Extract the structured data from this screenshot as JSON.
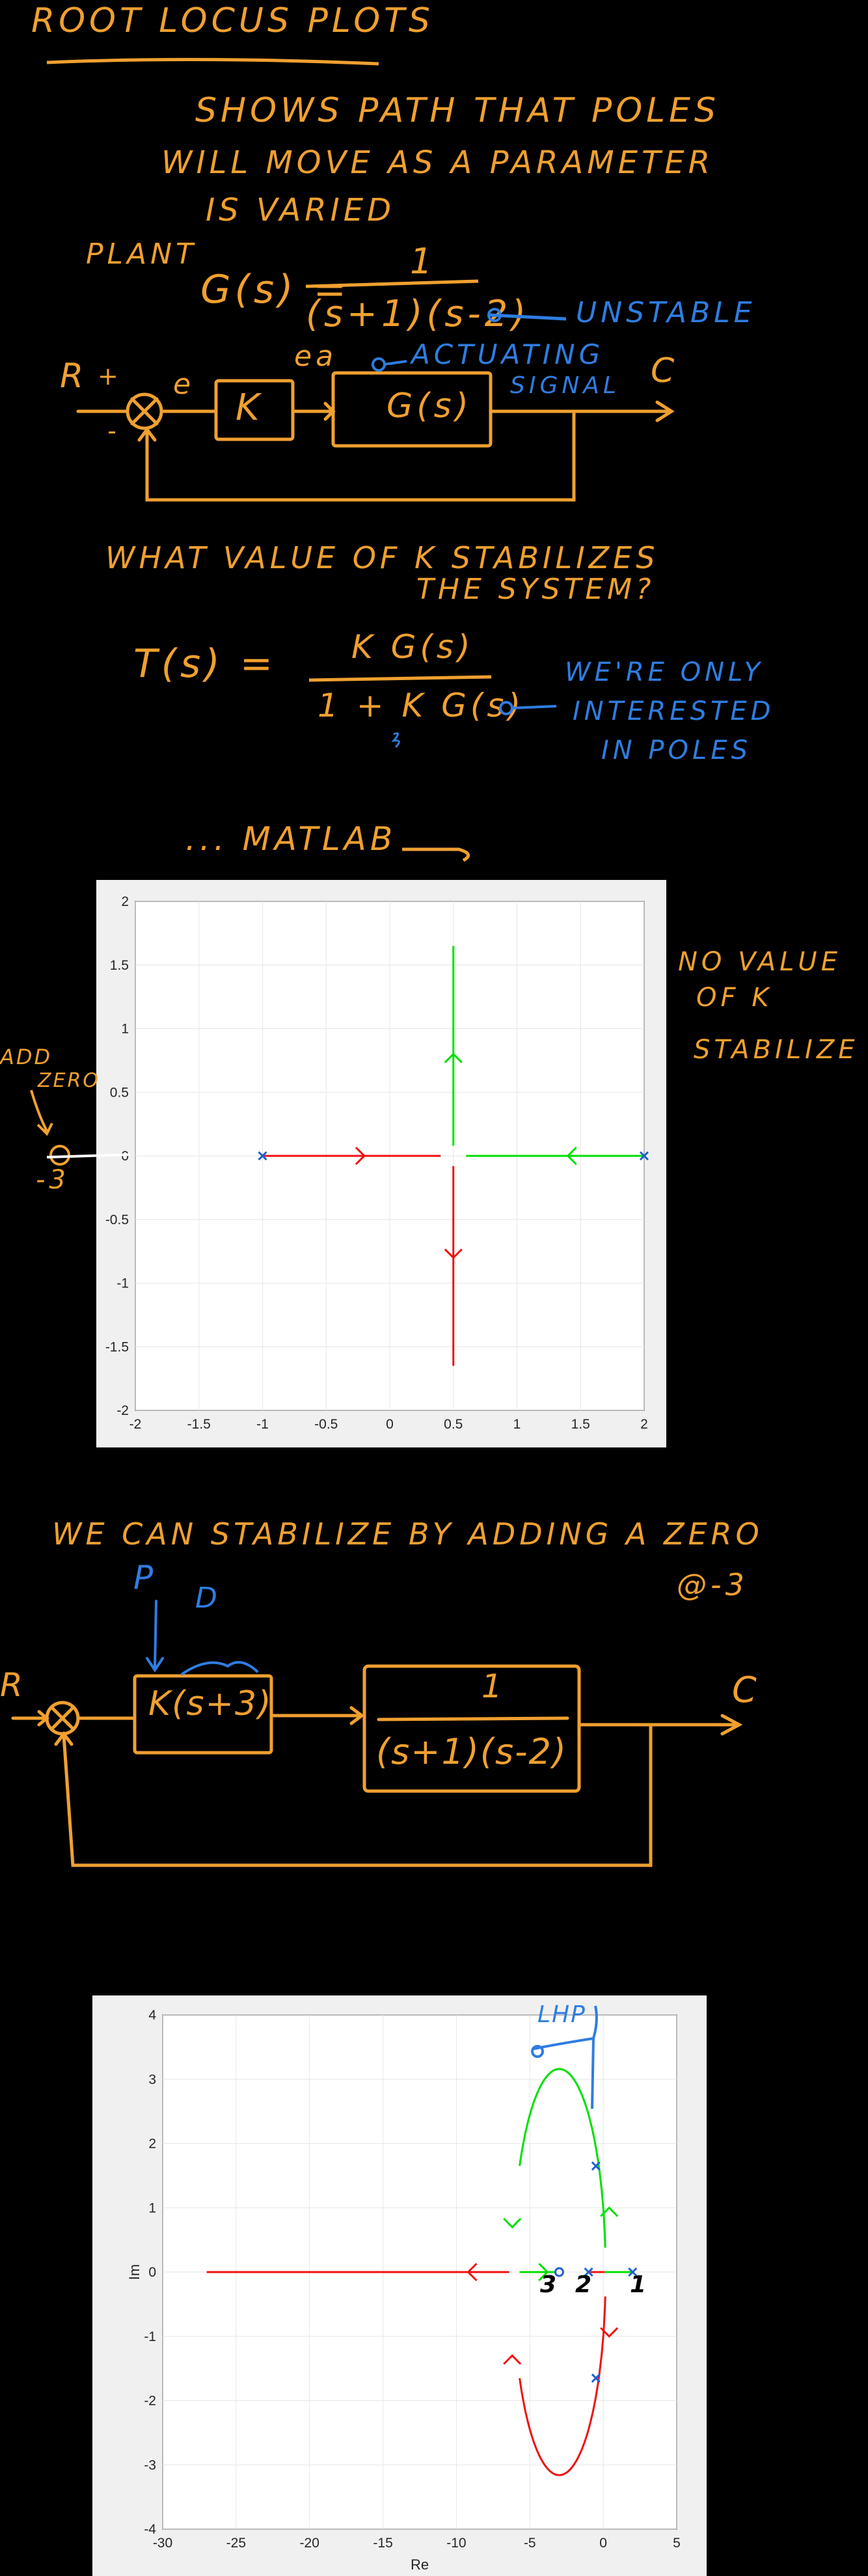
{
  "colors": {
    "ink": "#f0a030",
    "blue": "#2f7de1",
    "green": "#00e000",
    "red": "#f01010",
    "pole": "#1f5fd0"
  },
  "title": "ROOT LOCUS PLOTS",
  "intro": [
    "SHOWS PATH THAT POLES",
    "WILL MOVE AS A PARAMETER",
    "IS VARIED"
  ],
  "plant": {
    "label": "PLANT",
    "lhs": "G(s) =",
    "numerator": "1",
    "denominator": "(s+1)(s-2)",
    "note": "UNSTABLE"
  },
  "diagram1": {
    "r": "R",
    "plus": "+",
    "minus": "-",
    "e": "e",
    "ea": "ea",
    "k": "K",
    "g": "G(s)",
    "c": "C",
    "actuating": [
      "ACTUATING",
      "SIGNAL"
    ]
  },
  "question": [
    "WHAT VALUE OF K STABILIZES",
    "THE SYSTEM?"
  ],
  "closed_loop": {
    "lhs": "T(s) =",
    "numerator": "K G(s)",
    "denominator": "1 + K G(s)",
    "note": [
      "WE'RE ONLY",
      "INTERESTED",
      "IN POLES"
    ]
  },
  "matlab": "... MATLAB",
  "side_note": [
    "NO VALUE",
    "OF K",
    "STABILIZE"
  ],
  "add_zero": {
    "label": [
      "ADD",
      "ZERO"
    ],
    "value": "-3"
  },
  "stabilize": {
    "line": "WE CAN STABILIZE BY ADDING A ZERO",
    "where": "@-3"
  },
  "diagram2": {
    "p": "P",
    "d": "D",
    "r": "R",
    "c": "C",
    "controller": "K(s+3)",
    "plant_num": "1",
    "plant_den": "(s+1)(s-2)"
  },
  "plot1": {
    "type": "scatter",
    "xlim": [
      -2,
      2
    ],
    "ylim": [
      -2,
      2
    ],
    "grid": true,
    "xticks": [
      "-2",
      "-1.5",
      "-1",
      "-0.5",
      "0",
      "0.5",
      "1",
      "1.5",
      "2"
    ],
    "yticks": [
      "-2",
      "-1.5",
      "-1",
      "-0.5",
      "0",
      "0.5",
      "1",
      "1.5",
      "2"
    ],
    "poles": [
      [
        -1,
        0
      ],
      [
        2,
        0
      ]
    ],
    "red_branch": {
      "real_from": -1,
      "breakaway": 0.5,
      "imag_end": -1.65
    },
    "green_branch": {
      "real_from": 2,
      "breakaway": 0.5,
      "imag_end": 1.65
    }
  },
  "plot2": {
    "type": "scatter",
    "xlim": [
      -30,
      5
    ],
    "ylim": [
      -4,
      4
    ],
    "grid": true,
    "xlabel": "Re",
    "ylabel": "Im",
    "xticks": [
      "-30",
      "-25",
      "-20",
      "-15",
      "-10",
      "-5",
      "0",
      "5"
    ],
    "yticks": [
      "-4",
      "-3",
      "-2",
      "-1",
      "0",
      "1",
      "2",
      "3",
      "4"
    ],
    "poles": [
      [
        -1,
        0
      ],
      [
        2,
        0
      ],
      [
        -0.5,
        1.65
      ],
      [
        -0.5,
        -1.65
      ]
    ],
    "zero": [
      -3,
      0
    ],
    "circle": {
      "center": [
        -3,
        0
      ],
      "radius": 3.16
    },
    "red_real_from": -27,
    "annotations": {
      "lhp": "LHP",
      "num1": "1",
      "num2": "2",
      "num3": "3"
    }
  }
}
